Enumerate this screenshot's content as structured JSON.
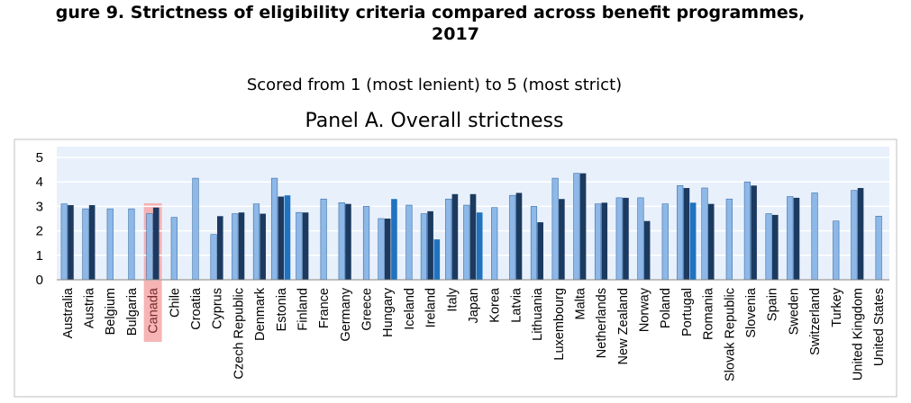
{
  "figure": {
    "title_line1": "gure 9. Strictness of eligibility criteria compared across benefit programmes,",
    "title_line2": "2017",
    "subtitle": "Scored from 1 (most lenient) to 5 (most strict)"
  },
  "colors": {
    "light_bar": "#8db8e8",
    "dark_bar": "#1c3a60",
    "mid_bar": "#1f73c0",
    "plot_bg": "#e8f0fb",
    "highlight": "#f4a7a7",
    "grid": "#ffffff"
  },
  "chart_data": {
    "type": "bar",
    "title": "Panel A. Overall strictness",
    "ylim": [
      0,
      5
    ],
    "yticks": [
      0,
      1,
      2,
      3,
      4,
      5
    ],
    "grid": true,
    "highlighted_category": "Canada",
    "categories": [
      "Australia",
      "Austria",
      "Belgium",
      "Bulgaria",
      "Canada",
      "Chile",
      "Croatia",
      "Cyprus",
      "Czech Republic",
      "Denmark",
      "Estonia",
      "Finland",
      "France",
      "Germany",
      "Greece",
      "Hungary",
      "Iceland",
      "Ireland",
      "Italy",
      "Japan",
      "Korea",
      "Latvia",
      "Lithuania",
      "Luxembourg",
      "Malta",
      "Netherlands",
      "New Zealand",
      "Norway",
      "Poland",
      "Portugal",
      "Romania",
      "Slovak Republic",
      "Slovenia",
      "Spain",
      "Sweden",
      "Switzerland",
      "Turkey",
      "United Kingdom",
      "United States"
    ],
    "series": [
      {
        "values": [
          3.1,
          2.9,
          2.9,
          2.9,
          2.7,
          2.55,
          4.15,
          1.85,
          2.7,
          3.1,
          4.15,
          2.75,
          3.3,
          3.15,
          3.0,
          2.5,
          3.05,
          2.7,
          3.3,
          3.05,
          2.95,
          3.45,
          3.0,
          4.15,
          4.35,
          3.1,
          3.35,
          3.35,
          3.1,
          3.85,
          3.75,
          3.3,
          4.0,
          2.7,
          3.4,
          3.55,
          2.4,
          3.65,
          2.6
        ]
      },
      {
        "values": [
          3.05,
          3.05,
          null,
          null,
          2.95,
          null,
          null,
          2.6,
          2.75,
          2.7,
          3.4,
          2.75,
          null,
          3.1,
          null,
          2.5,
          null,
          2.8,
          3.5,
          3.5,
          null,
          3.55,
          2.35,
          3.3,
          4.35,
          3.15,
          3.35,
          2.4,
          null,
          3.75,
          3.1,
          null,
          3.85,
          2.65,
          3.35,
          null,
          null,
          3.75,
          null
        ]
      },
      {
        "values": [
          null,
          null,
          null,
          null,
          null,
          null,
          null,
          null,
          null,
          null,
          3.45,
          null,
          null,
          null,
          null,
          3.3,
          null,
          1.65,
          null,
          2.75,
          null,
          null,
          null,
          null,
          null,
          null,
          null,
          null,
          null,
          3.15,
          null,
          null,
          null,
          null,
          null,
          null,
          null,
          null,
          null
        ]
      }
    ]
  }
}
